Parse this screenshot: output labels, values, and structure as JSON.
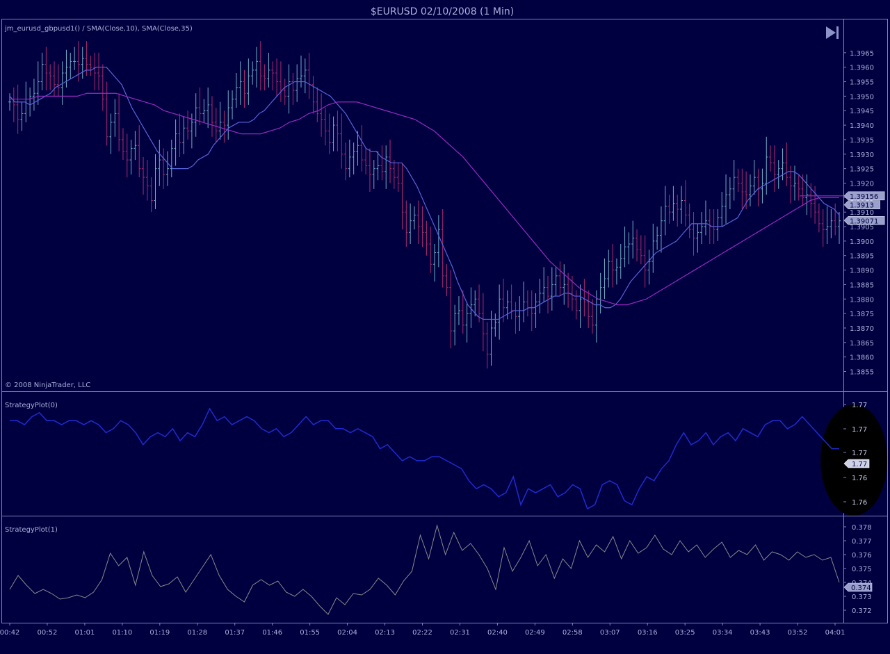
{
  "header": {
    "title": "$EURUSD  02/10/2008 (1 Min)"
  },
  "colors": {
    "background": "#000040",
    "border": "#7f86b8",
    "text": "#aab0d8",
    "up_bar": "#6fb0c6",
    "down_bar": "#b02a6c",
    "sma10": "#5a64d8",
    "sma35": "#9a2ac0",
    "strategy0": "#1f2bd0",
    "strategy1": "#8a8a8a",
    "last_label_bg": "#9aa0cc"
  },
  "icons": {
    "scroll_end": "skip-to-end-icon"
  },
  "chart_data": [
    {
      "type": "ohlc",
      "label": "jm_eurusd_gbpusd1() / SMA(Close,10), SMA(Close,35)",
      "copyright": "© 2008 NinjaTrader, LLC",
      "ylim": [
        1.3852,
        1.397
      ],
      "y_ticks": [
        "1.3965",
        "1.3960",
        "1.3955",
        "1.3950",
        "1.3945",
        "1.3940",
        "1.3935",
        "1.3930",
        "1.3925",
        "1.3920",
        "1.3915",
        "1.3910",
        "1.3905",
        "1.3900",
        "1.3895",
        "1.3890",
        "1.3885",
        "1.3880",
        "1.3875",
        "1.3870",
        "1.3865",
        "1.3860",
        "1.3855"
      ],
      "last_values": [
        {
          "label": "1.39156",
          "value": 1.39156
        },
        {
          "label": "1.3913",
          "value": 1.3913
        },
        {
          "label": "1.39071",
          "value": 1.39071
        }
      ],
      "series": [
        {
          "name": "Close",
          "values": [
            1.3948,
            1.3947,
            1.3942,
            1.3944,
            1.3949,
            1.395,
            1.3951,
            1.3955,
            1.3961,
            1.3958,
            1.3957,
            1.3954,
            1.3953,
            1.3958,
            1.396,
            1.3962,
            1.3962,
            1.3961,
            1.3963,
            1.3961,
            1.396,
            1.3958,
            1.3957,
            1.3949,
            1.3936,
            1.3941,
            1.3944,
            1.3935,
            1.3931,
            1.3928,
            1.3932,
            1.3933,
            1.3925,
            1.3922,
            1.3919,
            1.3914,
            1.3925,
            1.3928,
            1.3923,
            1.3925,
            1.3932,
            1.3937,
            1.3934,
            1.3939,
            1.3938,
            1.3941,
            1.3946,
            1.3944,
            1.3945,
            1.3947,
            1.3941,
            1.3938,
            1.3941,
            1.394,
            1.3946,
            1.3949,
            1.3953,
            1.3955,
            1.3951,
            1.3957,
            1.3959,
            1.3962,
            1.3957,
            1.3956,
            1.3959,
            1.3958,
            1.3955,
            1.3952,
            1.395,
            1.3955,
            1.3952,
            1.3956,
            1.3957,
            1.3959,
            1.3954,
            1.3948,
            1.3944,
            1.3942,
            1.3938,
            1.3934,
            1.394,
            1.3937,
            1.393,
            1.3925,
            1.3929,
            1.3931,
            1.3933,
            1.3928,
            1.3926,
            1.3923,
            1.3925,
            1.3926,
            1.3924,
            1.3929,
            1.3925,
            1.3922,
            1.392,
            1.391,
            1.3903,
            1.3907,
            1.3909,
            1.3905,
            1.3903,
            1.3899,
            1.3892,
            1.3896,
            1.3904,
            1.3888,
            1.3884,
            1.3869,
            1.3875,
            1.3876,
            1.3871,
            1.3875,
            1.3878,
            1.388,
            1.3875,
            1.3868,
            1.3861,
            1.387,
            1.3872,
            1.388,
            1.3877,
            1.3879,
            1.3876,
            1.3874,
            1.3876,
            1.3879,
            1.3877,
            1.3875,
            1.3879,
            1.3882,
            1.3884,
            1.3881,
            1.3885,
            1.3888,
            1.3884,
            1.3885,
            1.3882,
            1.388,
            1.3876,
            1.388,
            1.3879,
            1.3874,
            1.3871,
            1.388,
            1.3884,
            1.3887,
            1.3893,
            1.389,
            1.3891,
            1.3894,
            1.3898,
            1.3899,
            1.3901,
            1.3897,
            1.3895,
            1.389,
            1.3893,
            1.39,
            1.3902,
            1.3907,
            1.3912,
            1.391,
            1.3913,
            1.3911,
            1.3914,
            1.3909,
            1.3904,
            1.3901,
            1.3903,
            1.3905,
            1.3907,
            1.3905,
            1.3904,
            1.3908,
            1.3912,
            1.3916,
            1.3918,
            1.3922,
            1.392,
            1.3917,
            1.3916,
            1.3919,
            1.3922,
            1.3918,
            1.392,
            1.3929,
            1.3927,
            1.3923,
            1.3925,
            1.3927,
            1.3922,
            1.3919,
            1.392,
            1.3918,
            1.3915,
            1.3916,
            1.3913,
            1.391,
            1.3906,
            1.3904,
            1.3905,
            1.3907,
            1.3905,
            1.3907
          ]
        },
        {
          "name": "SMA(Close,10)",
          "values": [
            1.395,
            1.3948,
            1.3948,
            1.3948,
            1.3947,
            1.3948,
            1.3949,
            1.395,
            1.3951,
            1.3953,
            1.3954,
            1.3955,
            1.3956,
            1.3957,
            1.3958,
            1.3959,
            1.3959,
            1.396,
            1.396,
            1.396,
            1.3958,
            1.3956,
            1.3954,
            1.395,
            1.3946,
            1.3943,
            1.394,
            1.3937,
            1.3934,
            1.3931,
            1.3929,
            1.3927,
            1.3925,
            1.3925,
            1.3925,
            1.3925,
            1.3926,
            1.3928,
            1.3929,
            1.393,
            1.3933,
            1.3935,
            1.3937,
            1.3939,
            1.394,
            1.3941,
            1.3941,
            1.3941,
            1.3942,
            1.3944,
            1.3945,
            1.3947,
            1.3949,
            1.3951,
            1.3953,
            1.3954,
            1.3955,
            1.3955,
            1.3955,
            1.3954,
            1.3953,
            1.3952,
            1.3951,
            1.395,
            1.3948,
            1.3946,
            1.3944,
            1.3941,
            1.3938,
            1.3935,
            1.3932,
            1.3931,
            1.3931,
            1.3929,
            1.3928,
            1.3927,
            1.3927,
            1.3927,
            1.3925,
            1.3922,
            1.3919,
            1.3915,
            1.3911,
            1.3907,
            1.3903,
            1.3899,
            1.3895,
            1.3891,
            1.3886,
            1.3882,
            1.3878,
            1.3876,
            1.3874,
            1.3873,
            1.3873,
            1.3873,
            1.3873,
            1.3874,
            1.3875,
            1.3876,
            1.3876,
            1.3876,
            1.3877,
            1.3877,
            1.3878,
            1.3879,
            1.388,
            1.3881,
            1.3881,
            1.3882,
            1.3882,
            1.3881,
            1.3881,
            1.388,
            1.3879,
            1.3878,
            1.3878,
            1.3877,
            1.3877,
            1.3878,
            1.388,
            1.3883,
            1.3886,
            1.3888,
            1.389,
            1.3892,
            1.3894,
            1.3896,
            1.3897,
            1.3898,
            1.3899,
            1.39,
            1.3902,
            1.3904,
            1.3906,
            1.3906,
            1.3906,
            1.3906,
            1.3905,
            1.3905,
            1.3905,
            1.3906,
            1.3907,
            1.3908,
            1.3911,
            1.3914,
            1.3916,
            1.3918,
            1.3919,
            1.392,
            1.3921,
            1.3922,
            1.3923,
            1.3924,
            1.3924,
            1.3923,
            1.3921,
            1.3919,
            1.3917,
            1.3915,
            1.3913,
            1.3912,
            1.3911,
            1.3909
          ]
        },
        {
          "name": "SMA(Close,35)",
          "values": [
            1.3949,
            1.3949,
            1.3949,
            1.395,
            1.395,
            1.395,
            1.395,
            1.395,
            1.3951,
            1.3951,
            1.3951,
            1.3951,
            1.395,
            1.3949,
            1.3948,
            1.3947,
            1.3945,
            1.3944,
            1.3943,
            1.3942,
            1.3941,
            1.394,
            1.3939,
            1.3938,
            1.3937,
            1.3937,
            1.3937,
            1.3938,
            1.3939,
            1.3941,
            1.3942,
            1.3944,
            1.3945,
            1.3947,
            1.3948,
            1.3948,
            1.3948,
            1.3947,
            1.3946,
            1.3945,
            1.3944,
            1.3943,
            1.3942,
            1.394,
            1.3938,
            1.3935,
            1.3932,
            1.3929,
            1.3925,
            1.3921,
            1.3917,
            1.3913,
            1.3909,
            1.3905,
            1.3901,
            1.3897,
            1.3893,
            1.389,
            1.3887,
            1.3884,
            1.3882,
            1.388,
            1.3879,
            1.3878,
            1.3878,
            1.3879,
            1.388,
            1.3882,
            1.3884,
            1.3886,
            1.3888,
            1.389,
            1.3892,
            1.3894,
            1.3896,
            1.3898,
            1.39,
            1.3902,
            1.3904,
            1.3906,
            1.3908,
            1.391,
            1.3912,
            1.3914,
            1.3915,
            1.3915,
            1.3915
          ]
        }
      ]
    },
    {
      "type": "line",
      "label": "StrategyPlot(0)",
      "y_ticks": [
        "1.77",
        "1.77",
        "1.77",
        "1.76",
        "1.76"
      ],
      "last_value_label": "1.77",
      "series": [
        {
          "name": "StrategyPlot(0)",
          "values": [
            1.77,
            1.77,
            1.7699,
            1.7701,
            1.7702,
            1.77,
            1.77,
            1.7699,
            1.77,
            1.77,
            1.7699,
            1.77,
            1.7699,
            1.7697,
            1.7698,
            1.77,
            1.7699,
            1.7697,
            1.7694,
            1.7696,
            1.7697,
            1.7696,
            1.7698,
            1.7695,
            1.7697,
            1.7696,
            1.7699,
            1.7703,
            1.77,
            1.7701,
            1.7699,
            1.77,
            1.7701,
            1.77,
            1.7698,
            1.7697,
            1.7698,
            1.7696,
            1.7697,
            1.7699,
            1.7701,
            1.7699,
            1.77,
            1.77,
            1.7698,
            1.7698,
            1.7697,
            1.7698,
            1.7697,
            1.7696,
            1.7693,
            1.7694,
            1.7692,
            1.769,
            1.7691,
            1.769,
            1.769,
            1.7691,
            1.7691,
            1.769,
            1.7689,
            1.7688,
            1.7685,
            1.7683,
            1.7684,
            1.7683,
            1.7681,
            1.7682,
            1.7686,
            1.7679,
            1.7683,
            1.7682,
            1.7683,
            1.7684,
            1.7681,
            1.7682,
            1.7684,
            1.7683,
            1.7678,
            1.7679,
            1.7684,
            1.7685,
            1.7684,
            1.768,
            1.7679,
            1.7683,
            1.7686,
            1.7685,
            1.7688,
            1.769,
            1.7694,
            1.7697,
            1.7694,
            1.7695,
            1.7697,
            1.7694,
            1.7696,
            1.7697,
            1.7695,
            1.7698,
            1.7697,
            1.7696,
            1.7699,
            1.77,
            1.77,
            1.7698,
            1.7699,
            1.7701,
            1.7699,
            1.7697,
            1.7695,
            1.7693,
            1.7693
          ]
        }
      ]
    },
    {
      "type": "line",
      "label": "StrategyPlot(1)",
      "y_ticks": [
        "0.378",
        "0.377",
        "0.376",
        "0.375",
        "0.374",
        "0.373",
        "0.372"
      ],
      "ylim": [
        0.3713,
        0.3784
      ],
      "last_value_label": "0.374",
      "series": [
        {
          "name": "StrategyPlot(1)",
          "values": [
            0.3735,
            0.3745,
            0.3738,
            0.3732,
            0.3735,
            0.3732,
            0.3728,
            0.3729,
            0.3731,
            0.3729,
            0.3733,
            0.3742,
            0.3761,
            0.3752,
            0.3758,
            0.3738,
            0.3762,
            0.3745,
            0.3737,
            0.3739,
            0.3744,
            0.3733,
            0.3742,
            0.3751,
            0.376,
            0.3745,
            0.3735,
            0.373,
            0.3726,
            0.3738,
            0.3742,
            0.3738,
            0.3741,
            0.3733,
            0.373,
            0.3735,
            0.373,
            0.3723,
            0.3717,
            0.3729,
            0.3724,
            0.3732,
            0.3731,
            0.3735,
            0.3743,
            0.3738,
            0.3731,
            0.3741,
            0.3748,
            0.3774,
            0.3757,
            0.3781,
            0.376,
            0.3776,
            0.3763,
            0.3768,
            0.376,
            0.375,
            0.3735,
            0.3765,
            0.3748,
            0.3758,
            0.377,
            0.3752,
            0.376,
            0.3743,
            0.3757,
            0.375,
            0.377,
            0.3758,
            0.3767,
            0.3762,
            0.3773,
            0.3757,
            0.377,
            0.3761,
            0.3765,
            0.3774,
            0.3764,
            0.376,
            0.377,
            0.3762,
            0.3767,
            0.3758,
            0.3764,
            0.3769,
            0.3758,
            0.3763,
            0.376,
            0.3767,
            0.3756,
            0.3762,
            0.376,
            0.3756,
            0.3762,
            0.3758,
            0.376,
            0.3756,
            0.3758,
            0.374
          ]
        }
      ]
    }
  ],
  "x_axis": {
    "ticks": [
      "00:42",
      "00:52",
      "01:01",
      "01:10",
      "01:19",
      "01:28",
      "01:37",
      "01:46",
      "01:55",
      "02:04",
      "02:13",
      "02:22",
      "02:31",
      "02:40",
      "02:49",
      "02:58",
      "03:07",
      "03:16",
      "03:25",
      "03:34",
      "03:43",
      "03:52",
      "04:01"
    ]
  }
}
